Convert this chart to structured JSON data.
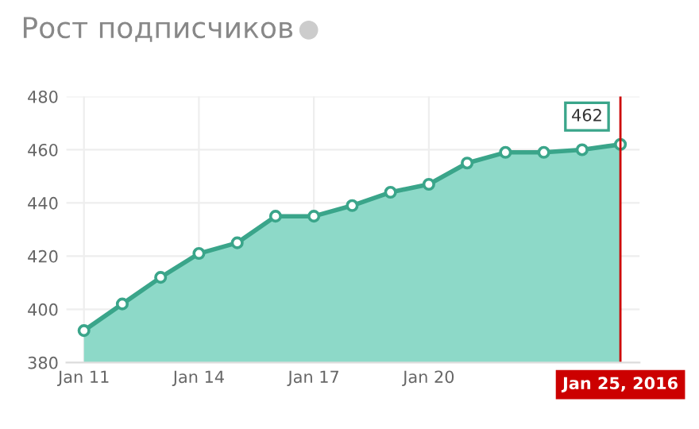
{
  "chart_data": {
    "type": "area",
    "title": "Рост подписчиков",
    "x": [
      "2016-01-11",
      "2016-01-12",
      "2016-01-13",
      "2016-01-14",
      "2016-01-15",
      "2016-01-16",
      "2016-01-17",
      "2016-01-18",
      "2016-01-19",
      "2016-01-20",
      "2016-01-21",
      "2016-01-22",
      "2016-01-23",
      "2016-01-24",
      "2016-01-25"
    ],
    "series": [
      {
        "color": "#3aa58a",
        "values": [
          392,
          402,
          412,
          421,
          425,
          435,
          435,
          439,
          444,
          447,
          455,
          459,
          459,
          460,
          462
        ]
      }
    ],
    "xlim": [
      "2016-01-10T13:00",
      "2016-01-25T12:00"
    ],
    "xticks": [
      {
        "value": "2016-01-11",
        "label": "Jan 11"
      },
      {
        "value": "2016-01-14",
        "label": "Jan 14"
      },
      {
        "value": "2016-01-17",
        "label": "Jan 17"
      },
      {
        "value": "2016-01-20",
        "label": "Jan 20"
      }
    ],
    "ylim": [
      380,
      480
    ],
    "yticks": [
      380,
      400,
      420,
      440,
      460,
      480
    ],
    "grid": true,
    "marker": "circle",
    "line_style": "solid",
    "ref_lines": [
      {
        "axis": "x",
        "value": "2016-01-25",
        "label": "Jan 25, 2016",
        "color": "#cc0000"
      }
    ],
    "annotations": [
      {
        "text": "462",
        "x": "2016-01-25",
        "y": 462
      }
    ]
  }
}
